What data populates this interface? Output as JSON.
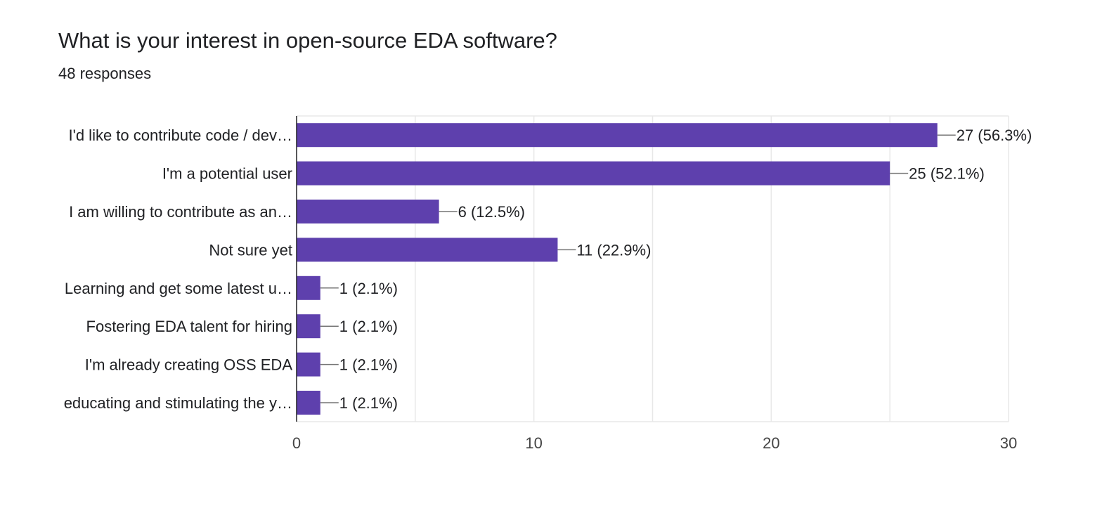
{
  "card": {
    "title": "What is your interest in open-source EDA software?",
    "responses": "48 responses"
  },
  "colors": {
    "bar": "#5e40ad",
    "grid": "#e8e8e8",
    "axis": "#202124",
    "leader": "#757575"
  },
  "chart_data": {
    "type": "bar",
    "orientation": "horizontal",
    "title": "What is your interest in open-source EDA software?",
    "subtitle": "48 responses",
    "categories": [
      "I'd like to contribute code / dev…",
      "I'm a potential user",
      "I am willing to contribute as an…",
      "Not sure yet",
      "Learning and get some latest u…",
      "Fostering EDA talent for hiring",
      "I'm already creating OSS EDA",
      "educating and stimulating the y…"
    ],
    "values": [
      27,
      25,
      6,
      11,
      1,
      1,
      1,
      1
    ],
    "data_labels": [
      "27 (56.3%)",
      "25 (52.1%)",
      "6 (12.5%)",
      "11 (22.9%)",
      "1 (2.1%)",
      "1 (2.1%)",
      "1 (2.1%)",
      "1 (2.1%)"
    ],
    "xlim": [
      0,
      30
    ],
    "xticks": [
      0,
      10,
      20,
      30
    ],
    "grid": true,
    "xlabel": "",
    "ylabel": ""
  }
}
